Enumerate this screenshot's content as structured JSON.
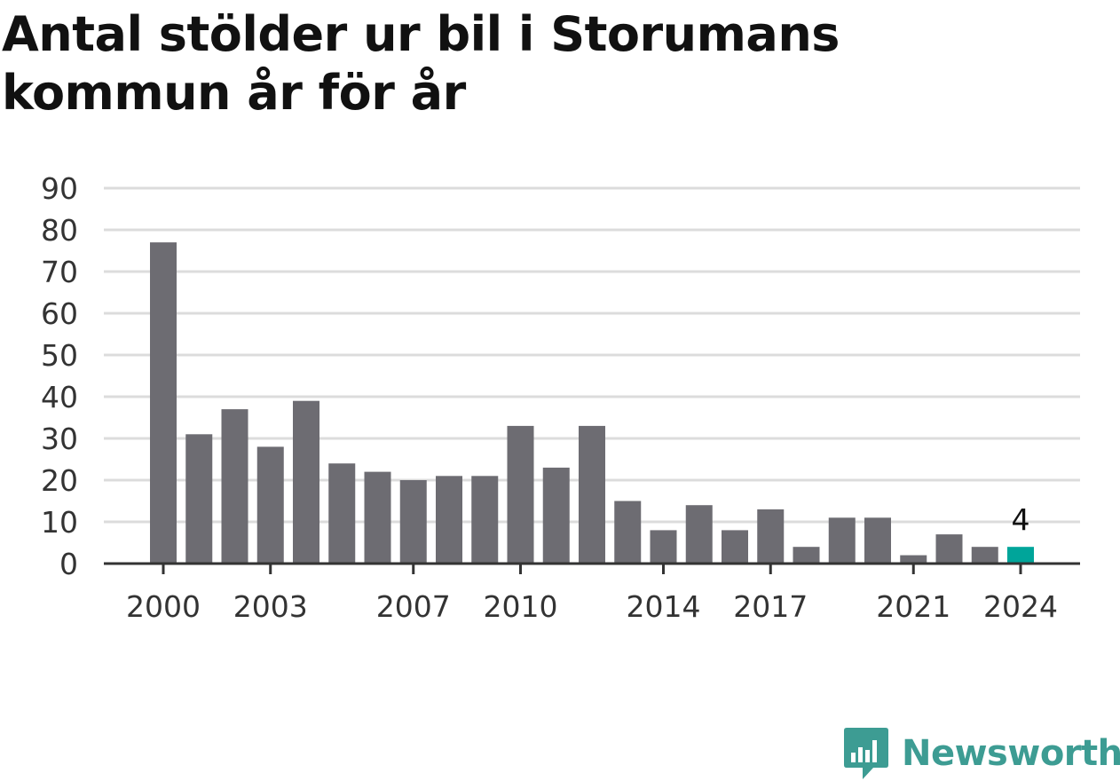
{
  "title": "Antal stölder ur bil i Storumans kommun år för år",
  "brand": {
    "name": "Newsworthy",
    "color": "#3d9c93"
  },
  "colors": {
    "bar": "#6d6c72",
    "highlight": "#00a59a",
    "grid": "#dcdcdc",
    "axis": "#333333"
  },
  "chart_data": {
    "type": "bar",
    "categories": [
      2000,
      2001,
      2002,
      2003,
      2004,
      2005,
      2006,
      2007,
      2008,
      2009,
      2010,
      2011,
      2012,
      2013,
      2014,
      2015,
      2016,
      2017,
      2018,
      2019,
      2020,
      2021,
      2022,
      2023,
      2024
    ],
    "values": [
      77,
      31,
      37,
      28,
      39,
      24,
      22,
      20,
      21,
      21,
      33,
      23,
      33,
      15,
      8,
      14,
      8,
      13,
      4,
      11,
      11,
      2,
      7,
      4,
      4
    ],
    "x_tick_labels": [
      "2000",
      "2003",
      "2007",
      "2010",
      "2014",
      "2017",
      "2021",
      "2024"
    ],
    "y_ticks": [
      0,
      10,
      20,
      30,
      40,
      50,
      60,
      70,
      80,
      90
    ],
    "ylim": [
      0,
      90
    ],
    "highlight": {
      "category": 2024,
      "label": "4"
    },
    "xlabel": "",
    "ylabel": "",
    "grid": true,
    "legend": "none"
  }
}
